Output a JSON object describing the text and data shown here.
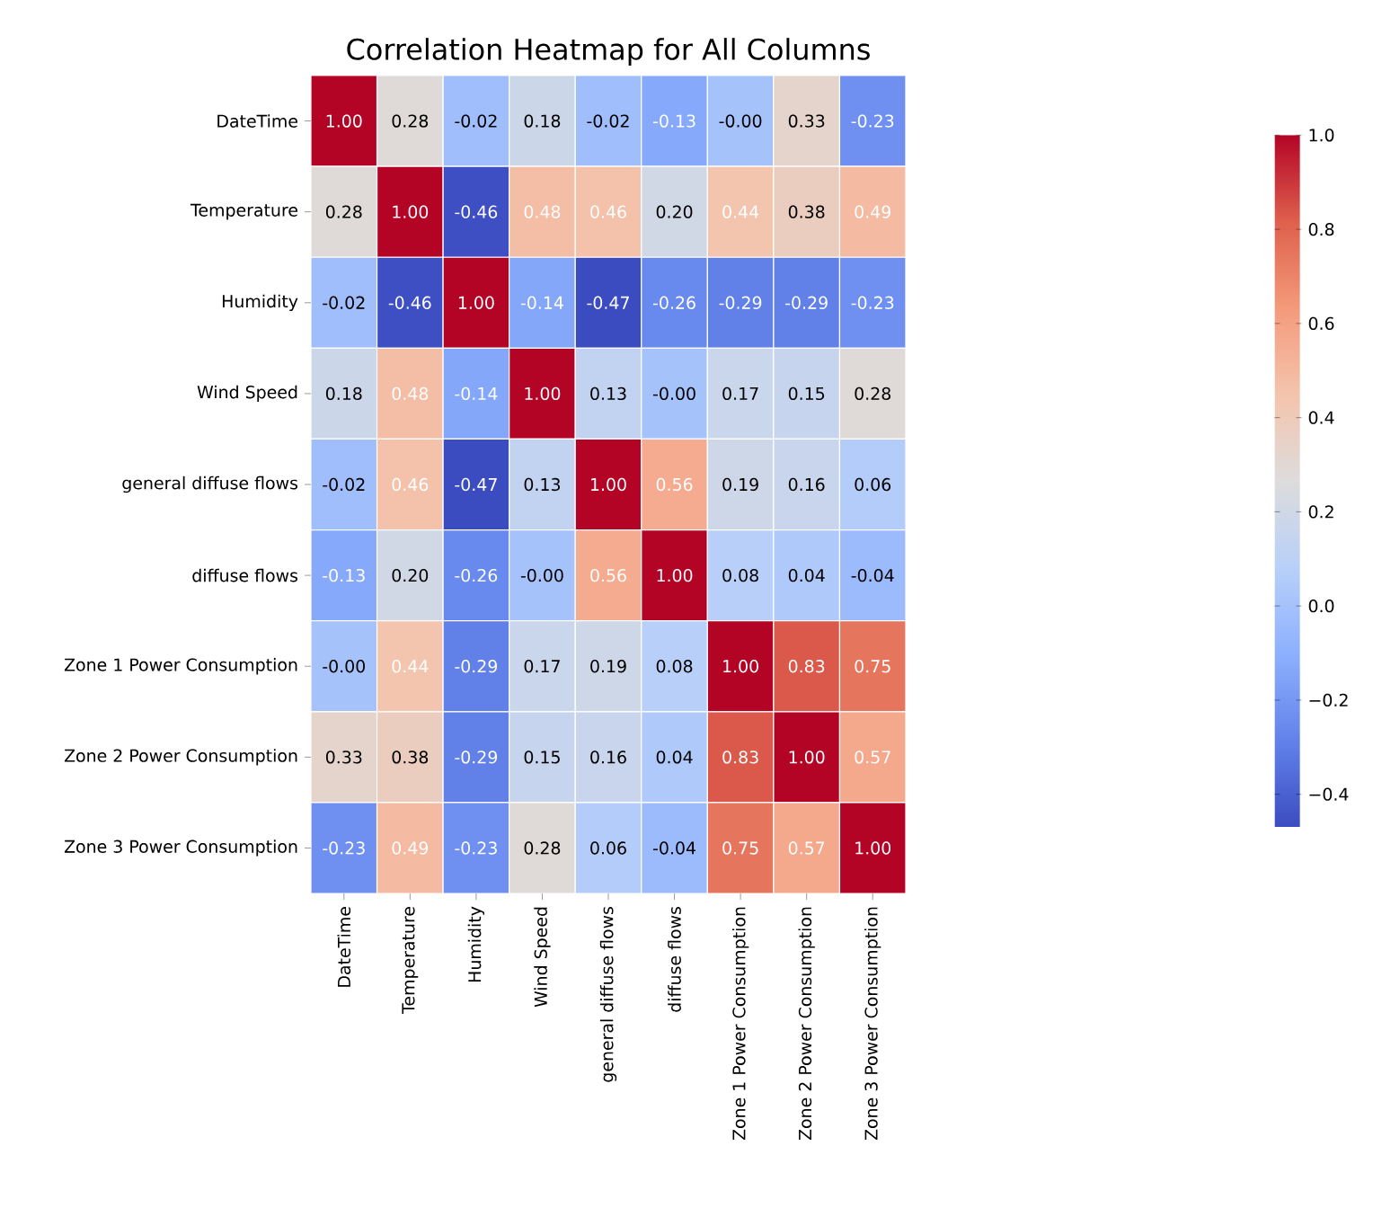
{
  "chart_data": {
    "type": "heatmap",
    "title": "Correlation Heatmap for All Columns",
    "categories": [
      "DateTime",
      "Temperature",
      "Humidity",
      "Wind Speed",
      "general diffuse flows",
      "diffuse flows",
      "Zone 1 Power Consumption",
      "Zone 2  Power Consumption",
      "Zone 3  Power Consumption"
    ],
    "y_categories": [
      "DateTime",
      "Temperature",
      "Humidity",
      "Wind Speed",
      "general diffuse flows",
      "diffuse flows",
      "Zone 1 Power Consumption",
      "Zone 2  Power Consumption",
      "Zone 3  Power Consumption"
    ],
    "cells": [
      [
        1.0,
        0.28,
        -0.02,
        0.18,
        -0.02,
        -0.13,
        0.0,
        0.33,
        -0.23
      ],
      [
        0.28,
        1.0,
        -0.46,
        0.48,
        0.46,
        0.2,
        0.44,
        0.38,
        0.49
      ],
      [
        -0.02,
        -0.46,
        1.0,
        -0.14,
        -0.47,
        -0.26,
        -0.29,
        -0.29,
        -0.23
      ],
      [
        0.18,
        0.48,
        -0.14,
        1.0,
        0.13,
        0.0,
        0.17,
        0.15,
        0.28
      ],
      [
        -0.02,
        0.46,
        -0.47,
        0.13,
        1.0,
        0.56,
        0.19,
        0.16,
        0.06
      ],
      [
        -0.13,
        0.2,
        -0.26,
        0.0,
        0.56,
        1.0,
        0.08,
        0.04,
        -0.04
      ],
      [
        0.0,
        0.44,
        -0.29,
        0.17,
        0.19,
        0.08,
        1.0,
        0.83,
        0.75
      ],
      [
        0.33,
        0.38,
        -0.29,
        0.15,
        0.16,
        0.04,
        0.83,
        1.0,
        0.57
      ],
      [
        -0.23,
        0.49,
        -0.23,
        0.28,
        0.06,
        -0.04,
        0.75,
        0.57,
        1.0
      ]
    ],
    "cell_labels": [
      [
        "1.00",
        "0.28",
        "-0.02",
        "0.18",
        "-0.02",
        "-0.13",
        "-0.00",
        "0.33",
        "-0.23"
      ],
      [
        "0.28",
        "1.00",
        "-0.46",
        "0.48",
        "0.46",
        "0.20",
        "0.44",
        "0.38",
        "0.49"
      ],
      [
        "-0.02",
        "-0.46",
        "1.00",
        "-0.14",
        "-0.47",
        "-0.26",
        "-0.29",
        "-0.29",
        "-0.23"
      ],
      [
        "0.18",
        "0.48",
        "-0.14",
        "1.00",
        "0.13",
        "-0.00",
        "0.17",
        "0.15",
        "0.28"
      ],
      [
        "-0.02",
        "0.46",
        "-0.47",
        "0.13",
        "1.00",
        "0.56",
        "0.19",
        "0.16",
        "0.06"
      ],
      [
        "-0.13",
        "0.20",
        "-0.26",
        "-0.00",
        "0.56",
        "1.00",
        "0.08",
        "0.04",
        "-0.04"
      ],
      [
        "-0.00",
        "0.44",
        "-0.29",
        "0.17",
        "0.19",
        "0.08",
        "1.00",
        "0.83",
        "0.75"
      ],
      [
        "0.33",
        "0.38",
        "-0.29",
        "0.15",
        "0.16",
        "0.04",
        "0.83",
        "1.00",
        "0.57"
      ],
      [
        "-0.23",
        "0.49",
        "-0.23",
        "0.28",
        "0.06",
        "-0.04",
        "0.75",
        "0.57",
        "1.00"
      ]
    ],
    "clim": [
      -0.47,
      1.0
    ],
    "cticks": [
      {
        "value": -0.4,
        "label": "−0.4"
      },
      {
        "value": -0.2,
        "label": "−0.2"
      },
      {
        "value": 0.0,
        "label": "0.0"
      },
      {
        "value": 0.2,
        "label": "0.2"
      },
      {
        "value": 0.4,
        "label": "0.4"
      },
      {
        "value": 0.6,
        "label": "0.6"
      },
      {
        "value": 0.8,
        "label": "0.8"
      },
      {
        "value": 1.0,
        "label": "1.0"
      }
    ]
  }
}
